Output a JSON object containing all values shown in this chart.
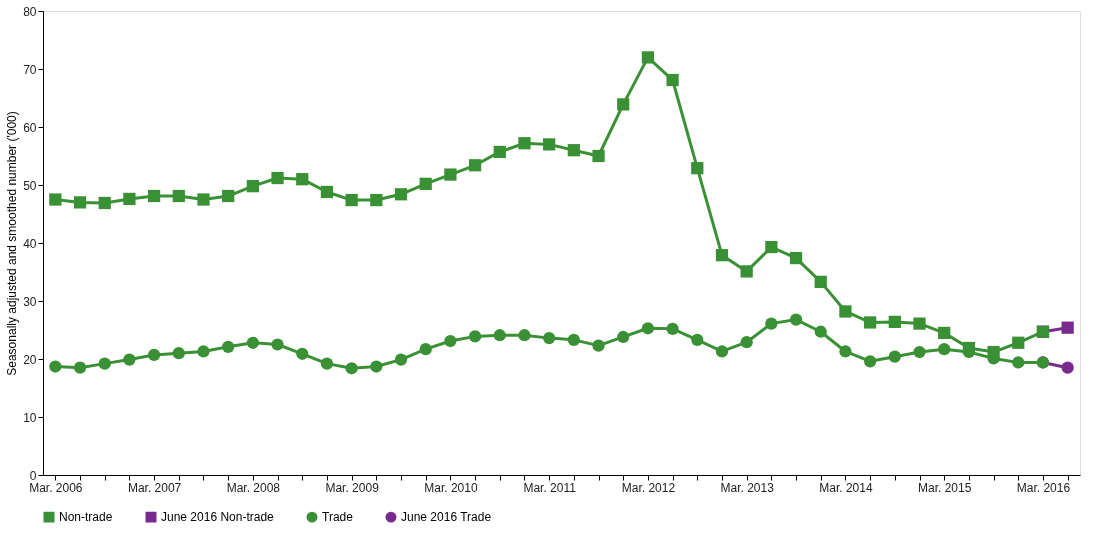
{
  "chart_data": {
    "type": "line",
    "ylabel": "Seasonally adjusted and smoothed number ('000)",
    "categories": [
      "Mar. 2006",
      null,
      null,
      null,
      "Mar. 2007",
      null,
      null,
      null,
      "Mar. 2008",
      null,
      null,
      null,
      "Mar. 2009",
      null,
      null,
      null,
      "Mar. 2010",
      null,
      null,
      null,
      "Mar. 2011",
      null,
      null,
      null,
      "Mar. 2012",
      null,
      null,
      null,
      "Mar. 2013",
      null,
      null,
      null,
      "Mar. 2014",
      null,
      null,
      null,
      "Mar. 2015",
      null,
      null,
      null,
      "Mar. 2016",
      null
    ],
    "series": [
      {
        "name": "Non-trade",
        "color": "#3a9135",
        "marker": "square",
        "values": [
          47.5,
          47.0,
          46.9,
          47.6,
          48.1,
          48.1,
          47.5,
          48.1,
          49.8,
          51.2,
          51.0,
          48.8,
          47.4,
          47.4,
          48.4,
          50.2,
          51.8,
          53.4,
          55.7,
          57.2,
          57.0,
          56.0,
          55.0,
          63.9,
          72.0,
          68.1,
          52.9,
          37.9,
          35.1,
          39.3,
          37.4,
          33.3,
          28.2,
          26.3,
          26.4,
          26.1,
          24.5,
          21.9,
          21.2,
          22.8,
          24.7,
          null
        ]
      },
      {
        "name": "June 2016 Non-trade",
        "color": "#7a2a8f",
        "marker": "square",
        "values": [
          null,
          null,
          null,
          null,
          null,
          null,
          null,
          null,
          null,
          null,
          null,
          null,
          null,
          null,
          null,
          null,
          null,
          null,
          null,
          null,
          null,
          null,
          null,
          null,
          null,
          null,
          null,
          null,
          null,
          null,
          null,
          null,
          null,
          null,
          null,
          null,
          null,
          null,
          null,
          null,
          24.7,
          25.4
        ]
      },
      {
        "name": "Trade",
        "color": "#3a9135",
        "marker": "circle",
        "values": [
          18.7,
          18.5,
          19.2,
          19.9,
          20.7,
          21.0,
          21.3,
          22.1,
          22.8,
          22.5,
          20.9,
          19.2,
          18.4,
          18.7,
          19.9,
          21.7,
          23.1,
          23.9,
          24.1,
          24.1,
          23.6,
          23.3,
          22.3,
          23.8,
          25.3,
          25.2,
          23.3,
          21.3,
          22.9,
          26.1,
          26.8,
          24.7,
          21.3,
          19.6,
          20.4,
          21.2,
          21.7,
          21.2,
          20.1,
          19.4,
          19.4,
          null
        ]
      },
      {
        "name": "June 2016 Trade",
        "color": "#7a2a8f",
        "marker": "circle",
        "values": [
          null,
          null,
          null,
          null,
          null,
          null,
          null,
          null,
          null,
          null,
          null,
          null,
          null,
          null,
          null,
          null,
          null,
          null,
          null,
          null,
          null,
          null,
          null,
          null,
          null,
          null,
          null,
          null,
          null,
          null,
          null,
          null,
          null,
          null,
          null,
          null,
          null,
          null,
          null,
          null,
          19.4,
          18.5
        ]
      }
    ],
    "ylim": [
      0,
      80
    ],
    "yticks": [
      0,
      10,
      20,
      30,
      40,
      50,
      60,
      70,
      80
    ],
    "grid": false,
    "legend": "bottom",
    "line_style": "solid"
  }
}
